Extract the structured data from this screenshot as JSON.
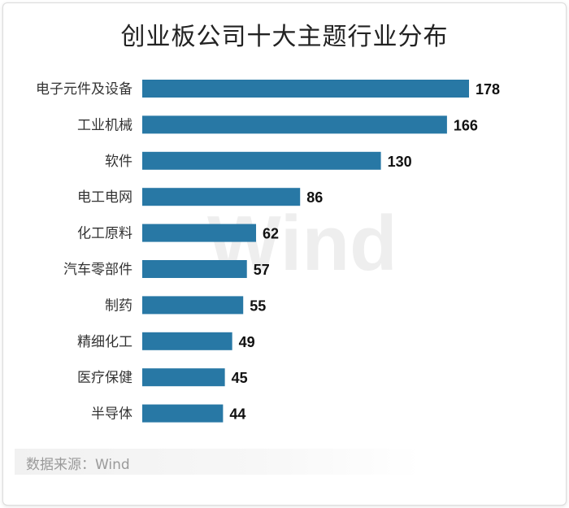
{
  "chart_data": {
    "type": "bar",
    "orientation": "horizontal",
    "title": "创业板公司十大主题行业分布",
    "categories": [
      "电子元件及设备",
      "工业机械",
      "软件",
      "电工电网",
      "化工原料",
      "汽车零部件",
      "制药",
      "精细化工",
      "医疗保健",
      "半导体"
    ],
    "values": [
      178,
      166,
      130,
      86,
      62,
      57,
      55,
      49,
      45,
      44
    ],
    "bar_color": "#2878a5",
    "grid": false,
    "legend": "none"
  },
  "watermark": "Wind",
  "source": "数据来源：Wind"
}
